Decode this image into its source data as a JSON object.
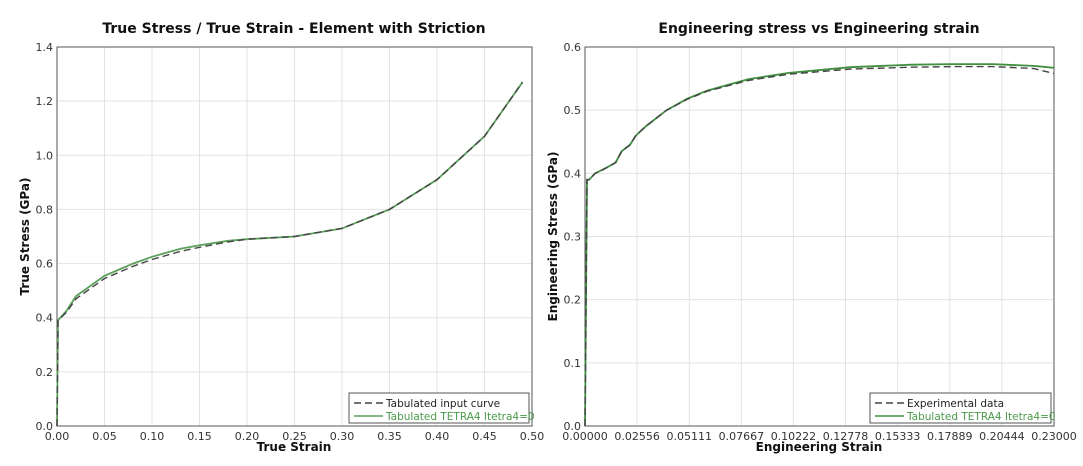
{
  "chart_data": [
    {
      "type": "line",
      "title": "True Stress / True Strain - Element with Striction",
      "xlabel": "True Strain",
      "ylabel": "True Stress (GPa)",
      "xlim": [
        0,
        0.5
      ],
      "ylim": [
        0,
        1.4
      ],
      "xticks": [
        "0.00",
        "0.05",
        "0.10",
        "0.15",
        "0.20",
        "0.25",
        "0.30",
        "0.35",
        "0.40",
        "0.45",
        "0.50"
      ],
      "yticks": [
        "0.0",
        "0.2",
        "0.4",
        "0.6",
        "0.8",
        "1.0",
        "1.2",
        "1.4"
      ],
      "grid": true,
      "legend_position": "bottom-right",
      "series": [
        {
          "name": "Tabulated input curve",
          "color": "#444444",
          "dash": true,
          "x": [
            0,
            0.001,
            0.01,
            0.02,
            0.05,
            0.08,
            0.1,
            0.13,
            0.15,
            0.18,
            0.2,
            0.25,
            0.3,
            0.35,
            0.4,
            0.45,
            0.49
          ],
          "y": [
            0,
            0.39,
            0.42,
            0.47,
            0.545,
            0.59,
            0.615,
            0.645,
            0.66,
            0.68,
            0.69,
            0.7,
            0.73,
            0.8,
            0.91,
            1.07,
            1.27
          ]
        },
        {
          "name": "Tabulated TETRA4  Itetra4=0",
          "color": "#5aa05a",
          "dash": false,
          "x": [
            0,
            0.001,
            0.01,
            0.02,
            0.05,
            0.08,
            0.1,
            0.13,
            0.15,
            0.18,
            0.2,
            0.25,
            0.3,
            0.35,
            0.4,
            0.45,
            0.49
          ],
          "y": [
            0,
            0.39,
            0.425,
            0.48,
            0.555,
            0.6,
            0.625,
            0.655,
            0.668,
            0.684,
            0.69,
            0.7,
            0.73,
            0.8,
            0.91,
            1.07,
            1.27
          ]
        }
      ]
    },
    {
      "type": "line",
      "title": "Engineering stress vs Engineering strain",
      "xlabel": "Engineering Strain",
      "ylabel": "Engineering Stress  (GPa)",
      "xlim": [
        0,
        0.23
      ],
      "ylim": [
        0,
        0.6
      ],
      "xticks": [
        "0.00000",
        "0.02556",
        "0.05111",
        "0.07667",
        "0.10222",
        "0.12778",
        "0.15333",
        "0.17889",
        "0.20444",
        "0.23000"
      ],
      "yticks": [
        "0.0",
        "0.1",
        "0.2",
        "0.3",
        "0.4",
        "0.5",
        "0.6"
      ],
      "grid": true,
      "legend_position": "bottom-right",
      "series": [
        {
          "name": "Experimental data",
          "color": "#444444",
          "dash": true,
          "x": [
            0,
            0.001,
            0.002,
            0.005,
            0.01,
            0.015,
            0.018,
            0.022,
            0.025,
            0.03,
            0.04,
            0.05,
            0.06,
            0.08,
            0.1,
            0.13,
            0.16,
            0.18,
            0.2,
            0.22,
            0.23
          ],
          "y": [
            0,
            0.39,
            0.39,
            0.4,
            0.408,
            0.417,
            0.435,
            0.445,
            0.46,
            0.475,
            0.5,
            0.517,
            0.53,
            0.547,
            0.557,
            0.565,
            0.568,
            0.569,
            0.569,
            0.566,
            0.558
          ]
        },
        {
          "name": "Tabulated TETRA4  Itetra4=0",
          "color": "#3f8f3f",
          "dash": false,
          "x": [
            0,
            0.001,
            0.002,
            0.005,
            0.01,
            0.015,
            0.018,
            0.022,
            0.025,
            0.03,
            0.04,
            0.05,
            0.06,
            0.08,
            0.1,
            0.13,
            0.16,
            0.18,
            0.2,
            0.22,
            0.23
          ],
          "y": [
            0,
            0.39,
            0.39,
            0.4,
            0.408,
            0.417,
            0.435,
            0.445,
            0.46,
            0.475,
            0.5,
            0.518,
            0.531,
            0.549,
            0.559,
            0.568,
            0.572,
            0.573,
            0.573,
            0.57,
            0.567
          ]
        }
      ]
    }
  ]
}
